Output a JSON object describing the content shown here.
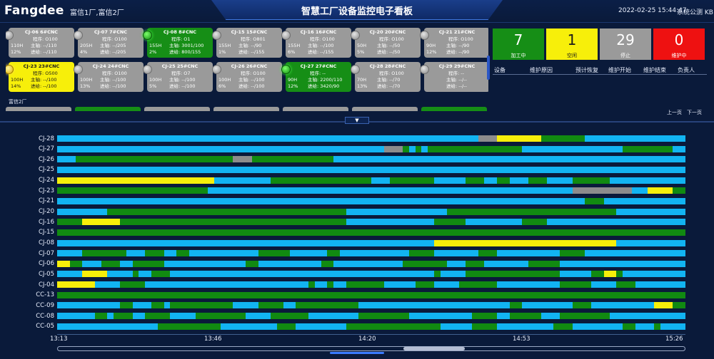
{
  "header": {
    "logo": "Fangdee",
    "factories": "富信1厂,富信2厂",
    "title": "智慧工厂设备监控电子看板",
    "datetime": "2022-02-25 15:44:47",
    "user": "系统公测",
    "user_suffix": "KB"
  },
  "cards_row1": [
    {
      "name": "CJ-06 6#CNC",
      "state": "gray",
      "program": "程序: O100",
      "r1a": "110H",
      "r1b": "主轴: --/110",
      "r2a": "12%",
      "r2b": "进给: --/110"
    },
    {
      "name": "CJ-07 7#CNC",
      "state": "gray",
      "program": "程序: O100",
      "r1a": "205H",
      "r1b": "主轴: --/205",
      "r2a": "4%",
      "r2b": "进给: --/205"
    },
    {
      "name": "CJ-08 8#CNC",
      "state": "green",
      "program": "程序: O1",
      "r1a": "155H",
      "r1b": "主轴: 3001/100",
      "r2a": "2%",
      "r2b": "进给: 800/155"
    },
    {
      "name": "CJ-15 15#CNC",
      "state": "gray",
      "program": "程序: O801",
      "r1a": "155H",
      "r1b": "主轴: --/90",
      "r2a": "1%",
      "r2b": "进给: --/155"
    },
    {
      "name": "CJ-16 16#CNC",
      "state": "gray",
      "program": "程序: O100",
      "r1a": "155H",
      "r1b": "主轴: --/100",
      "r2a": "6%",
      "r2b": "进给: --/155"
    },
    {
      "name": "CJ-20 20#CNC",
      "state": "gray",
      "program": "程序: O100",
      "r1a": "50H",
      "r1b": "主轴: --/50",
      "r2a": "5%",
      "r2b": "进给: --/50"
    },
    {
      "name": "CJ-21 21#CNC",
      "state": "gray",
      "program": "程序: O100",
      "r1a": "90H",
      "r1b": "主轴: --/90",
      "r2a": "12%",
      "r2b": "进给: --/90"
    }
  ],
  "cards_row2": [
    {
      "name": "CJ-23 23#CNC",
      "state": "yellow",
      "program": "程序: O500",
      "r1a": "100H",
      "r1b": "主轴: --/100",
      "r2a": "14%",
      "r2b": "进给: --/100"
    },
    {
      "name": "CJ-24 24#CNC",
      "state": "gray",
      "program": "程序: O100",
      "r1a": "100H",
      "r1b": "主轴: --/100",
      "r2a": "13%",
      "r2b": "进给: --/100"
    },
    {
      "name": "CJ-25 25#CNC",
      "state": "gray",
      "program": "程序: O7",
      "r1a": "100H",
      "r1b": "主轴: --/100",
      "r2a": "5%",
      "r2b": "进给: --/100"
    },
    {
      "name": "CJ-26 26#CNC",
      "state": "gray",
      "program": "程序: O100",
      "r1a": "100H",
      "r1b": "主轴: --/100",
      "r2a": "6%",
      "r2b": "进给: --/100"
    },
    {
      "name": "CJ-27 27#CNC",
      "state": "green",
      "program": "程序: --",
      "r1a": "90H",
      "r1b": "主轴: 2200/110",
      "r2a": "12%",
      "r2b": "进给: 3420/90"
    },
    {
      "name": "CJ-28 28#CNC",
      "state": "gray",
      "program": "程序: O100",
      "r1a": "70H",
      "r1b": "主轴: --/70",
      "r2a": "13%",
      "r2b": "进给: --/70"
    },
    {
      "name": "CJ-29 29#CNC",
      "state": "gray",
      "program": "程序: --",
      "r1a": "",
      "r1b": "主轴: --/--",
      "r2a": "",
      "r2b": "进给: --/--"
    }
  ],
  "factory2_label": "富信2厂",
  "stats": {
    "processing": {
      "value": "7",
      "label": "加工中"
    },
    "idle": {
      "value": "1",
      "label": "空闲"
    },
    "stopped": {
      "value": "29",
      "label": "停止"
    },
    "maintenance": {
      "value": "0",
      "label": "维护中"
    }
  },
  "maintenance_table": {
    "headers": [
      "设备",
      "维护原因",
      "预计恢复",
      "维护开始",
      "维护结束",
      "负责人"
    ],
    "prev": "上一页",
    "next": "下一页"
  },
  "colors": {
    "running": "#168e16",
    "idle": "#f7ef0a",
    "stopped": "#9a9a9a",
    "maintenance": "#ee1111",
    "timeline_cyan": "#12b4f2",
    "timeline_green": "#118a11",
    "timeline_yellow": "#f7ef0a",
    "timeline_gray": "#8c8c8c"
  },
  "timeline": {
    "ticks": [
      "13:13",
      "13:46",
      "14:20",
      "14:53",
      "15:26"
    ],
    "rows": [
      {
        "label": "CJ-28",
        "segs": [
          [
            0,
            67,
            "c"
          ],
          [
            67,
            70,
            "g"
          ],
          [
            70,
            73,
            "y"
          ],
          [
            73,
            75.5,
            "y"
          ],
          [
            75.5,
            77,
            "y"
          ],
          [
            84,
            100,
            "c"
          ]
        ]
      },
      {
        "label": "CJ-27",
        "segs": [
          [
            0,
            52,
            "c"
          ],
          [
            52,
            55,
            "x"
          ],
          [
            56,
            57,
            "c"
          ],
          [
            58,
            59,
            "c"
          ],
          [
            74,
            90,
            "c"
          ],
          [
            98,
            100,
            "c"
          ]
        ]
      },
      {
        "label": "CJ-26",
        "segs": [
          [
            0,
            3,
            "c"
          ],
          [
            28,
            31,
            "x"
          ],
          [
            44,
            100,
            "c"
          ]
        ]
      },
      {
        "label": "CJ-25",
        "segs": [
          [
            0,
            100,
            "c"
          ]
        ]
      },
      {
        "label": "CJ-24",
        "segs": [
          [
            0,
            25,
            "y"
          ],
          [
            25,
            34,
            "c"
          ],
          [
            50,
            53,
            "c"
          ],
          [
            60,
            65,
            "c"
          ],
          [
            68,
            70,
            "c"
          ],
          [
            72,
            75,
            "c"
          ],
          [
            78,
            82,
            "c"
          ],
          [
            88,
            100,
            "c"
          ]
        ]
      },
      {
        "label": "CJ-23",
        "segs": [
          [
            24,
            82,
            "c"
          ],
          [
            82,
            91.5,
            "x"
          ],
          [
            91.5,
            94,
            "c"
          ],
          [
            94,
            98,
            "y"
          ]
        ]
      },
      {
        "label": "CJ-21",
        "segs": [
          [
            0,
            84,
            "c"
          ],
          [
            87,
            100,
            "c"
          ]
        ]
      },
      {
        "label": "CJ-20",
        "segs": [
          [
            0,
            8,
            "c"
          ],
          [
            46,
            62,
            "c"
          ],
          [
            89,
            100,
            "c"
          ]
        ]
      },
      {
        "label": "CJ-16",
        "segs": [
          [
            4,
            10,
            "y"
          ],
          [
            46,
            60,
            "c"
          ],
          [
            65,
            74,
            "c"
          ],
          [
            78,
            100,
            "c"
          ]
        ]
      },
      {
        "label": "CJ-15",
        "segs": []
      },
      {
        "label": "CJ-08",
        "segs": [
          [
            0,
            60,
            "c"
          ],
          [
            60,
            89,
            "y"
          ],
          [
            89,
            100,
            "c"
          ]
        ]
      },
      {
        "label": "CJ-07",
        "segs": [
          [
            0,
            4,
            "c"
          ],
          [
            11,
            14,
            "c"
          ],
          [
            17,
            19,
            "c"
          ],
          [
            21,
            32,
            "c"
          ],
          [
            37,
            39,
            "c"
          ],
          [
            37,
            43,
            "c"
          ],
          [
            45,
            56,
            "c"
          ],
          [
            60,
            67,
            "c"
          ],
          [
            70,
            80,
            "c"
          ],
          [
            84,
            100,
            "c"
          ]
        ]
      },
      {
        "label": "CJ-06",
        "segs": [
          [
            0,
            2,
            "y"
          ],
          [
            4,
            7,
            "c"
          ],
          [
            10,
            12,
            "c"
          ],
          [
            17,
            30,
            "c"
          ],
          [
            32,
            42,
            "c"
          ],
          [
            44,
            55,
            "c"
          ],
          [
            62,
            65,
            "c"
          ],
          [
            68,
            75,
            "c"
          ],
          [
            80,
            100,
            "c"
          ]
        ]
      },
      {
        "label": "CJ-05",
        "segs": [
          [
            0,
            4,
            "c"
          ],
          [
            4,
            8,
            "y"
          ],
          [
            8,
            12,
            "c"
          ],
          [
            13,
            15,
            "c"
          ],
          [
            18,
            28,
            "c"
          ],
          [
            28,
            60,
            "c"
          ],
          [
            61,
            65,
            "c"
          ],
          [
            80,
            85,
            "c"
          ],
          [
            87,
            89,
            "y"
          ],
          [
            90,
            100,
            "c"
          ]
        ]
      },
      {
        "label": "CJ-04",
        "segs": [
          [
            0,
            6,
            "y"
          ],
          [
            6,
            10,
            "c"
          ],
          [
            14,
            21,
            "c"
          ],
          [
            21,
            33,
            "c"
          ],
          [
            33,
            40,
            "c"
          ],
          [
            41,
            43,
            "c"
          ],
          [
            44,
            46,
            "c"
          ],
          [
            52,
            57,
            "c"
          ],
          [
            60,
            64,
            "c"
          ],
          [
            70,
            80,
            "c"
          ],
          [
            85,
            89,
            "c"
          ],
          [
            92,
            100,
            "c"
          ]
        ]
      },
      {
        "label": "CC-13",
        "segs": []
      },
      {
        "label": "CC-09",
        "segs": [
          [
            0,
            10,
            "c"
          ],
          [
            12,
            15,
            "c"
          ],
          [
            17,
            18,
            "c"
          ],
          [
            28,
            32,
            "c"
          ],
          [
            36,
            38,
            "c"
          ],
          [
            48,
            72,
            "c"
          ],
          [
            74,
            82,
            "c"
          ],
          [
            85,
            95,
            "c"
          ],
          [
            95,
            98,
            "y"
          ]
        ]
      },
      {
        "label": "CC-08",
        "segs": [
          [
            0,
            6,
            "c"
          ],
          [
            8,
            9,
            "c"
          ],
          [
            12,
            14,
            "c"
          ],
          [
            18,
            22,
            "c"
          ],
          [
            30,
            34,
            "c"
          ],
          [
            40,
            48,
            "c"
          ],
          [
            56,
            66,
            "c"
          ],
          [
            70,
            72,
            "c"
          ],
          [
            77,
            80,
            "c"
          ],
          [
            88,
            100,
            "c"
          ]
        ]
      },
      {
        "label": "CC-05",
        "segs": [
          [
            0,
            16,
            "c"
          ],
          [
            26,
            35,
            "c"
          ],
          [
            38,
            46,
            "c"
          ],
          [
            61,
            66,
            "c"
          ],
          [
            70,
            79,
            "c"
          ],
          [
            82,
            90,
            "c"
          ],
          [
            92,
            95,
            "c"
          ],
          [
            96,
            100,
            "c"
          ]
        ]
      }
    ]
  }
}
